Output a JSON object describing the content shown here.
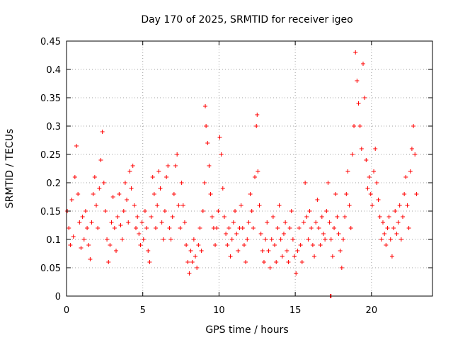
{
  "chart_data": {
    "type": "scatter",
    "title": "Day 170 of 2025, SRMTID for receiver igeo",
    "xlabel": "GPS time / hours",
    "ylabel": "SRMTID / TECUs",
    "xlim": [
      0,
      24
    ],
    "ylim": [
      0,
      0.45
    ],
    "xticks": [
      0,
      5,
      10,
      15,
      20
    ],
    "xtick_labels": [
      "0",
      "5",
      "10",
      "15",
      "20"
    ],
    "yticks": [
      0,
      0.05,
      0.1,
      0.15,
      0.2,
      0.25,
      0.3,
      0.35,
      0.4,
      0.45
    ],
    "ytick_labels": [
      "0",
      "0.05",
      "0.1",
      "0.15",
      "0.2",
      "0.25",
      "0.3",
      "0.35",
      "0.4",
      "0.45"
    ],
    "grid": true,
    "marker": "+",
    "color": "#ff0000",
    "series": [
      {
        "name": "SRMTID",
        "points": [
          [
            0.05,
            0.15
          ],
          [
            0.15,
            0.12
          ],
          [
            0.25,
            0.09
          ],
          [
            0.35,
            0.17
          ],
          [
            0.45,
            0.105
          ],
          [
            0.55,
            0.21
          ],
          [
            0.65,
            0.265
          ],
          [
            0.75,
            0.18
          ],
          [
            0.85,
            0.13
          ],
          [
            0.95,
            0.085
          ],
          [
            1.05,
            0.14
          ],
          [
            1.15,
            0.1
          ],
          [
            1.25,
            0.15
          ],
          [
            1.35,
            0.12
          ],
          [
            1.45,
            0.09
          ],
          [
            1.55,
            0.065
          ],
          [
            1.65,
            0.13
          ],
          [
            1.75,
            0.18
          ],
          [
            1.85,
            0.21
          ],
          [
            1.95,
            0.16
          ],
          [
            2.05,
            0.12
          ],
          [
            2.15,
            0.19
          ],
          [
            2.25,
            0.24
          ],
          [
            2.35,
            0.29
          ],
          [
            2.45,
            0.2
          ],
          [
            2.55,
            0.15
          ],
          [
            2.65,
            0.1
          ],
          [
            2.75,
            0.06
          ],
          [
            2.85,
            0.09
          ],
          [
            2.95,
            0.13
          ],
          [
            3.05,
            0.175
          ],
          [
            3.15,
            0.12
          ],
          [
            3.25,
            0.08
          ],
          [
            3.35,
            0.14
          ],
          [
            3.45,
            0.18
          ],
          [
            3.55,
            0.125
          ],
          [
            3.65,
            0.1
          ],
          [
            3.75,
            0.15
          ],
          [
            3.85,
            0.2
          ],
          [
            3.95,
            0.17
          ],
          [
            4.05,
            0.13
          ],
          [
            4.15,
            0.22
          ],
          [
            4.25,
            0.19
          ],
          [
            4.35,
            0.23
          ],
          [
            4.45,
            0.16
          ],
          [
            4.55,
            0.12
          ],
          [
            4.65,
            0.14
          ],
          [
            4.75,
            0.11
          ],
          [
            4.85,
            0.09
          ],
          [
            4.95,
            0.13
          ],
          [
            5.05,
            0.1
          ],
          [
            5.15,
            0.15
          ],
          [
            5.25,
            0.12
          ],
          [
            5.35,
            0.08
          ],
          [
            5.45,
            0.06
          ],
          [
            5.55,
            0.14
          ],
          [
            5.65,
            0.21
          ],
          [
            5.75,
            0.18
          ],
          [
            5.85,
            0.12
          ],
          [
            5.95,
            0.16
          ],
          [
            6.05,
            0.22
          ],
          [
            6.15,
            0.19
          ],
          [
            6.25,
            0.13
          ],
          [
            6.35,
            0.1
          ],
          [
            6.45,
            0.15
          ],
          [
            6.55,
            0.21
          ],
          [
            6.65,
            0.23
          ],
          [
            6.75,
            0.12
          ],
          [
            6.85,
            0.1
          ],
          [
            6.95,
            0.14
          ],
          [
            7.05,
            0.18
          ],
          [
            7.15,
            0.23
          ],
          [
            7.25,
            0.25
          ],
          [
            7.35,
            0.16
          ],
          [
            7.45,
            0.12
          ],
          [
            7.55,
            0.2
          ],
          [
            7.65,
            0.16
          ],
          [
            7.75,
            0.13
          ],
          [
            7.85,
            0.09
          ],
          [
            7.95,
            0.06
          ],
          [
            8.05,
            0.04
          ],
          [
            8.15,
            0.08
          ],
          [
            8.25,
            0.06
          ],
          [
            8.35,
            0.1
          ],
          [
            8.45,
            0.07
          ],
          [
            8.55,
            0.05
          ],
          [
            8.65,
            0.09
          ],
          [
            8.75,
            0.12
          ],
          [
            8.85,
            0.08
          ],
          [
            8.95,
            0.15
          ],
          [
            9.05,
            0.2
          ],
          [
            9.1,
            0.335
          ],
          [
            9.15,
            0.3
          ],
          [
            9.25,
            0.27
          ],
          [
            9.35,
            0.23
          ],
          [
            9.45,
            0.18
          ],
          [
            9.55,
            0.14
          ],
          [
            9.65,
            0.12
          ],
          [
            9.75,
            0.09
          ],
          [
            9.85,
            0.12
          ],
          [
            9.95,
            0.15
          ],
          [
            10.05,
            0.28
          ],
          [
            10.15,
            0.25
          ],
          [
            10.25,
            0.19
          ],
          [
            10.35,
            0.14
          ],
          [
            10.45,
            0.11
          ],
          [
            10.55,
            0.09
          ],
          [
            10.65,
            0.12
          ],
          [
            10.75,
            0.07
          ],
          [
            10.85,
            0.1
          ],
          [
            10.95,
            0.13
          ],
          [
            11.05,
            0.15
          ],
          [
            11.15,
            0.11
          ],
          [
            11.25,
            0.08
          ],
          [
            11.35,
            0.12
          ],
          [
            11.45,
            0.16
          ],
          [
            11.55,
            0.12
          ],
          [
            11.65,
            0.09
          ],
          [
            11.75,
            0.06
          ],
          [
            11.85,
            0.1
          ],
          [
            11.95,
            0.13
          ],
          [
            12.05,
            0.18
          ],
          [
            12.15,
            0.15
          ],
          [
            12.25,
            0.12
          ],
          [
            12.35,
            0.21
          ],
          [
            12.45,
            0.3
          ],
          [
            12.5,
            0.32
          ],
          [
            12.55,
            0.22
          ],
          [
            12.65,
            0.16
          ],
          [
            12.75,
            0.11
          ],
          [
            12.85,
            0.08
          ],
          [
            12.95,
            0.06
          ],
          [
            13.05,
            0.1
          ],
          [
            13.15,
            0.13
          ],
          [
            13.25,
            0.08
          ],
          [
            13.35,
            0.05
          ],
          [
            13.45,
            0.1
          ],
          [
            13.55,
            0.14
          ],
          [
            13.65,
            0.09
          ],
          [
            13.75,
            0.06
          ],
          [
            13.85,
            0.12
          ],
          [
            13.95,
            0.16
          ],
          [
            14.05,
            0.1
          ],
          [
            14.15,
            0.07
          ],
          [
            14.25,
            0.11
          ],
          [
            14.35,
            0.13
          ],
          [
            14.45,
            0.08
          ],
          [
            14.55,
            0.06
          ],
          [
            14.65,
            0.12
          ],
          [
            14.75,
            0.15
          ],
          [
            14.85,
            0.1
          ],
          [
            14.95,
            0.07
          ],
          [
            15.05,
            0.04
          ],
          [
            15.15,
            0.08
          ],
          [
            15.25,
            0.12
          ],
          [
            15.35,
            0.09
          ],
          [
            15.45,
            0.06
          ],
          [
            15.55,
            0.13
          ],
          [
            15.65,
            0.2
          ],
          [
            15.75,
            0.14
          ],
          [
            15.85,
            0.1
          ],
          [
            15.95,
            0.15
          ],
          [
            16.05,
            0.12
          ],
          [
            16.15,
            0.09
          ],
          [
            16.25,
            0.07
          ],
          [
            16.35,
            0.13
          ],
          [
            16.45,
            0.17
          ],
          [
            16.55,
            0.12
          ],
          [
            16.65,
            0.09
          ],
          [
            16.75,
            0.14
          ],
          [
            16.85,
            0.11
          ],
          [
            16.95,
            0.1
          ],
          [
            17.05,
            0.15
          ],
          [
            17.15,
            0.2
          ],
          [
            17.25,
            0.13
          ],
          [
            17.35,
            0.1
          ],
          [
            17.45,
            0.07
          ],
          [
            17.55,
            0.12
          ],
          [
            17.65,
            0.18
          ],
          [
            17.75,
            0.14
          ],
          [
            17.85,
            0.11
          ],
          [
            17.95,
            0.08
          ],
          [
            18.05,
            0.05
          ],
          [
            18.15,
            0.1
          ],
          [
            18.25,
            0.14
          ],
          [
            18.35,
            0.18
          ],
          [
            18.45,
            0.22
          ],
          [
            18.55,
            0.16
          ],
          [
            18.65,
            0.12
          ],
          [
            18.75,
            0.25
          ],
          [
            18.85,
            0.3
          ],
          [
            18.95,
            0.43
          ],
          [
            19.05,
            0.38
          ],
          [
            19.15,
            0.34
          ],
          [
            19.25,
            0.3
          ],
          [
            19.35,
            0.26
          ],
          [
            19.45,
            0.41
          ],
          [
            19.55,
            0.35
          ],
          [
            19.65,
            0.24
          ],
          [
            19.75,
            0.19
          ],
          [
            19.85,
            0.21
          ],
          [
            19.95,
            0.18
          ],
          [
            20.05,
            0.16
          ],
          [
            20.15,
            0.22
          ],
          [
            20.25,
            0.26
          ],
          [
            20.35,
            0.2
          ],
          [
            20.45,
            0.17
          ],
          [
            20.55,
            0.14
          ],
          [
            20.65,
            0.1
          ],
          [
            20.75,
            0.13
          ],
          [
            20.85,
            0.11
          ],
          [
            20.95,
            0.09
          ],
          [
            21.05,
            0.12
          ],
          [
            21.15,
            0.14
          ],
          [
            21.25,
            0.1
          ],
          [
            21.35,
            0.07
          ],
          [
            21.45,
            0.12
          ],
          [
            21.55,
            0.15
          ],
          [
            21.65,
            0.11
          ],
          [
            21.75,
            0.13
          ],
          [
            21.85,
            0.16
          ],
          [
            21.95,
            0.1
          ],
          [
            22.05,
            0.14
          ],
          [
            22.15,
            0.18
          ],
          [
            22.25,
            0.21
          ],
          [
            22.35,
            0.16
          ],
          [
            22.45,
            0.12
          ],
          [
            22.55,
            0.22
          ],
          [
            22.65,
            0.26
          ],
          [
            22.75,
            0.3
          ],
          [
            22.85,
            0.25
          ],
          [
            22.95,
            0.18
          ],
          [
            17.3,
            0.0
          ],
          [
            17.35,
            0.0
          ]
        ]
      }
    ]
  }
}
